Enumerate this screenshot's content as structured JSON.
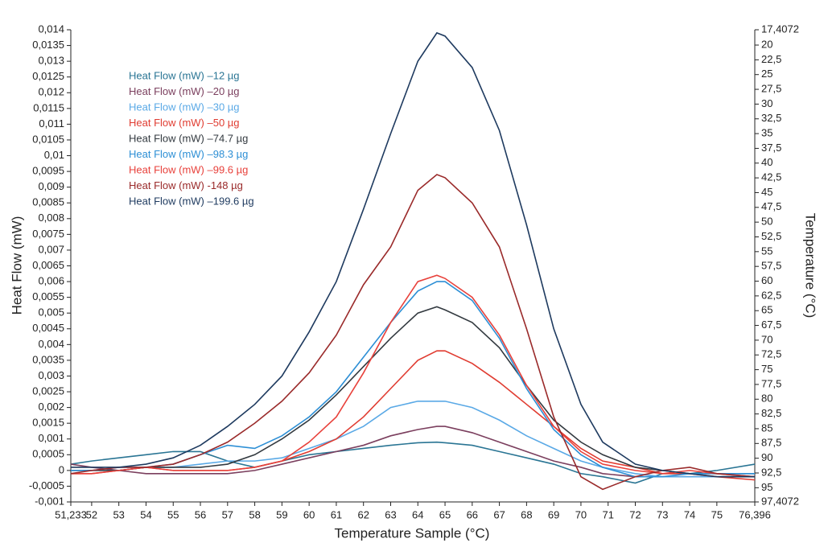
{
  "chart_data": {
    "type": "line",
    "xlabel": "Temperature Sample (°C)",
    "ylabel": "Heat Flow (mW)",
    "y2label": "Temperature (°C)",
    "x": [
      51.233,
      52,
      53,
      54,
      55,
      56,
      57,
      58,
      59,
      60,
      61,
      62,
      63,
      64,
      64.7,
      65,
      66,
      67,
      68,
      69,
      70,
      70.8,
      72,
      73,
      74,
      75,
      76.396
    ],
    "xlim": [
      51.233,
      76.396
    ],
    "xticks": [
      {
        "value": 51.233,
        "label": "51,233"
      },
      52,
      53,
      54,
      55,
      56,
      57,
      58,
      59,
      60,
      61,
      62,
      63,
      64,
      65,
      66,
      67,
      68,
      69,
      70,
      71,
      72,
      73,
      74,
      75,
      {
        "value": 76.396,
        "label": "76,396"
      }
    ],
    "ylim": [
      -0.001,
      0.014
    ],
    "yticks": [
      {
        "value": -0.001,
        "label": "-0,001"
      },
      {
        "value": -0.0005,
        "label": "-0,0005"
      },
      0,
      {
        "value": 0.0005,
        "label": "0,0005"
      },
      {
        "value": 0.001,
        "label": "0,001"
      },
      {
        "value": 0.0015,
        "label": "0,0015"
      },
      {
        "value": 0.002,
        "label": "0,002"
      },
      {
        "value": 0.0025,
        "label": "0,0025"
      },
      {
        "value": 0.003,
        "label": "0,003"
      },
      {
        "value": 0.0035,
        "label": "0,0035"
      },
      {
        "value": 0.004,
        "label": "0,004"
      },
      {
        "value": 0.0045,
        "label": "0,0045"
      },
      {
        "value": 0.005,
        "label": "0,005"
      },
      {
        "value": 0.0055,
        "label": "0,0055"
      },
      {
        "value": 0.006,
        "label": "0,006"
      },
      {
        "value": 0.0065,
        "label": "0,0065"
      },
      {
        "value": 0.007,
        "label": "0,007"
      },
      {
        "value": 0.0075,
        "label": "0,0075"
      },
      {
        "value": 0.008,
        "label": "0,008"
      },
      {
        "value": 0.0085,
        "label": "0,0085"
      },
      {
        "value": 0.009,
        "label": "0,009"
      },
      {
        "value": 0.0095,
        "label": "0,0095"
      },
      {
        "value": 0.01,
        "label": "0,01"
      },
      {
        "value": 0.0105,
        "label": "0,0105"
      },
      {
        "value": 0.011,
        "label": "0,011"
      },
      {
        "value": 0.0115,
        "label": "0,0115"
      },
      {
        "value": 0.012,
        "label": "0,012"
      },
      {
        "value": 0.0125,
        "label": "0,0125"
      },
      {
        "value": 0.013,
        "label": "0,013"
      },
      {
        "value": 0.0135,
        "label": "0,0135"
      },
      {
        "value": 0.014,
        "label": "0,014"
      }
    ],
    "y2lim": [
      97.4072,
      17.4072
    ],
    "y2ticks": [
      {
        "value": 17.4072,
        "label": "17,4072"
      },
      20,
      {
        "value": 22.5,
        "label": "22,5"
      },
      25,
      {
        "value": 27.5,
        "label": "27,5"
      },
      30,
      {
        "value": 32.5,
        "label": "32,5"
      },
      35,
      {
        "value": 37.5,
        "label": "37,5"
      },
      40,
      {
        "value": 42.5,
        "label": "42,5"
      },
      45,
      {
        "value": 47.5,
        "label": "47,5"
      },
      50,
      {
        "value": 52.5,
        "label": "52,5"
      },
      55,
      {
        "value": 57.5,
        "label": "57,5"
      },
      60,
      {
        "value": 62.5,
        "label": "62,5"
      },
      65,
      {
        "value": 67.5,
        "label": "67,5"
      },
      70,
      {
        "value": 72.5,
        "label": "72,5"
      },
      75,
      {
        "value": 77.5,
        "label": "77,5"
      },
      80,
      {
        "value": 82.5,
        "label": "82,5"
      },
      85,
      {
        "value": 87.5,
        "label": "87,5"
      },
      90,
      {
        "value": 92.5,
        "label": "92,5"
      },
      95,
      {
        "value": 97.4072,
        "label": "97,4072"
      }
    ],
    "series": [
      {
        "name": "Heat Flow (mW) –12 µg",
        "color": "#2a7594",
        "values": [
          0.0002,
          0.0003,
          0.0004,
          0.0005,
          0.0006,
          0.0006,
          0.0003,
          0.0001,
          0.0003,
          0.0005,
          0.0006,
          0.0007,
          0.0008,
          0.00088,
          0.0009,
          0.00088,
          0.0008,
          0.0006,
          0.0004,
          0.0002,
          -0.0001,
          -0.0002,
          -0.0004,
          -0.0001,
          -0.0001,
          0,
          0.0002
        ]
      },
      {
        "name": "Heat Flow (mW) –20 µg",
        "color": "#7b3f5e",
        "values": [
          0.0002,
          0.0001,
          0,
          -0.0001,
          -0.0001,
          -0.0001,
          -0.0001,
          0,
          0.0002,
          0.0004,
          0.0006,
          0.0008,
          0.0011,
          0.0013,
          0.0014,
          0.0014,
          0.0012,
          0.0009,
          0.0006,
          0.0003,
          0.0001,
          -0.0001,
          -0.0002,
          -0.0002,
          -0.0002,
          -0.0002,
          -0.0002
        ]
      },
      {
        "name": "Heat Flow (mW) –30 µg",
        "color": "#5aa9e6",
        "values": [
          0,
          0,
          0,
          0.0001,
          0.0001,
          0.0002,
          0.0003,
          0.0003,
          0.0004,
          0.0007,
          0.001,
          0.0014,
          0.002,
          0.0022,
          0.0022,
          0.0022,
          0.002,
          0.0016,
          0.0011,
          0.0007,
          0.0003,
          0.0001,
          -0.0001,
          -0.0002,
          -0.0002,
          -0.0002,
          -0.0002
        ]
      },
      {
        "name": "Heat Flow (mW) –50 µg",
        "color": "#e03c31",
        "values": [
          -0.0001,
          -0.0001,
          0,
          0.0001,
          0,
          0,
          0,
          0.0001,
          0.0003,
          0.0006,
          0.001,
          0.0017,
          0.0026,
          0.0035,
          0.0038,
          0.0038,
          0.0034,
          0.0028,
          0.0021,
          0.0014,
          0.0007,
          0.0003,
          0.0001,
          -0.0001,
          -0.0001,
          -0.0002,
          -0.0003
        ]
      },
      {
        "name": "Heat Flow (mW) –74.7 µg",
        "color": "#333a40",
        "values": [
          0,
          0,
          0,
          0.0001,
          0.0001,
          0.0001,
          0.0002,
          0.0005,
          0.001,
          0.0016,
          0.0024,
          0.0033,
          0.0042,
          0.005,
          0.0052,
          0.0051,
          0.0047,
          0.0039,
          0.0027,
          0.0016,
          0.0009,
          0.0005,
          0.0001,
          0,
          -0.0001,
          -0.0001,
          -0.0001
        ]
      },
      {
        "name": "Heat Flow (mW) –98.3 µg",
        "color": "#2d8fd5",
        "values": [
          0,
          0,
          0.0001,
          0.0001,
          0.0002,
          0.0005,
          0.0008,
          0.0007,
          0.0011,
          0.0017,
          0.0025,
          0.0036,
          0.0047,
          0.0057,
          0.006,
          0.006,
          0.0054,
          0.0042,
          0.0026,
          0.0013,
          0.0005,
          0.0001,
          -0.0002,
          -0.0002,
          -0.0001,
          -0.0001,
          -0.0001
        ]
      },
      {
        "name": "Heat Flow (mW) –99.6 µg",
        "color": "#e8413b",
        "values": [
          -0.0001,
          -0.0001,
          0,
          0.0001,
          0,
          0,
          0,
          0.0001,
          0.0003,
          0.0009,
          0.0017,
          0.0031,
          0.0047,
          0.006,
          0.0062,
          0.0061,
          0.0055,
          0.0043,
          0.0027,
          0.0014,
          0.0006,
          0.0002,
          0,
          -0.0001,
          0,
          -0.0001,
          -0.0002
        ]
      },
      {
        "name": "Heat Flow (mW) -148 µg",
        "color": "#9a2a2a",
        "values": [
          -0.0001,
          0,
          0.0001,
          0.0001,
          0.0002,
          0.0005,
          0.0009,
          0.0015,
          0.0022,
          0.0031,
          0.0043,
          0.0059,
          0.0071,
          0.0089,
          0.0094,
          0.0093,
          0.0085,
          0.0071,
          0.0045,
          0.0017,
          -0.0002,
          -0.0006,
          -0.0002,
          0,
          0.0001,
          -0.0001,
          -0.0002
        ]
      },
      {
        "name": "Heat Flow (mW) –199.6 µg",
        "color": "#1e3a5f",
        "values": [
          0.0001,
          0.0001,
          0.0001,
          0.0002,
          0.0004,
          0.0008,
          0.0014,
          0.0021,
          0.003,
          0.0044,
          0.006,
          0.0083,
          0.0107,
          0.013,
          0.0139,
          0.0138,
          0.0128,
          0.0108,
          0.0078,
          0.0045,
          0.0021,
          0.0009,
          0.0002,
          0,
          -0.0001,
          -0.0002,
          -0.0002
        ]
      }
    ]
  }
}
